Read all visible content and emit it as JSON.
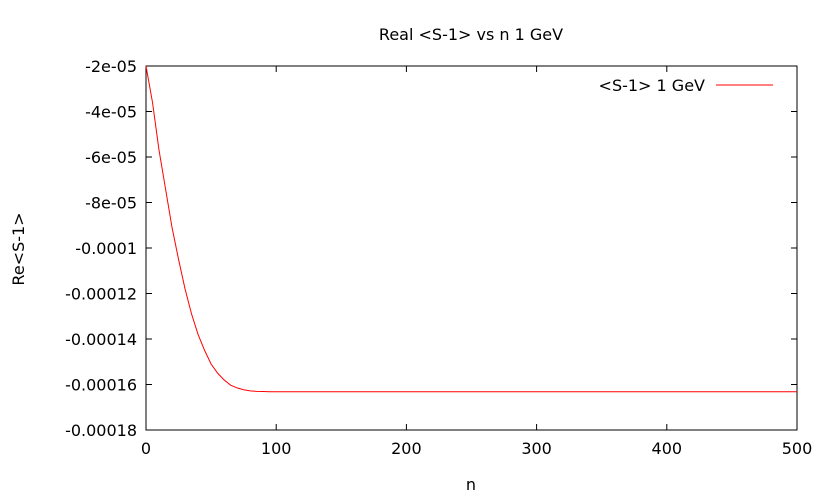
{
  "chart_data": {
    "type": "line",
    "title": "Real <S-1> vs n 1 GeV",
    "xlabel": "n",
    "ylabel": "Re<S-1>",
    "xlim": [
      0,
      500
    ],
    "ylim": [
      -0.00018,
      -2e-05
    ],
    "x_ticks": [
      0,
      100,
      200,
      300,
      400,
      500
    ],
    "x_tick_labels": [
      "0",
      "100",
      "200",
      "300",
      "400",
      "500"
    ],
    "y_ticks": [
      -2e-05,
      -4e-05,
      -6e-05,
      -8e-05,
      -0.0001,
      -0.00012,
      -0.00014,
      -0.00016,
      -0.00018
    ],
    "y_tick_labels": [
      "-2e-05",
      "-4e-05",
      "-6e-05",
      "-8e-05",
      "-0.0001",
      "-0.00012",
      "-0.00014",
      "-0.00016",
      "-0.00018"
    ],
    "grid": false,
    "legend_position": "top-right",
    "series": [
      {
        "name": "<S-1> 1  GeV",
        "color": "#ff0000",
        "x": [
          0,
          5,
          10,
          15,
          20,
          25,
          30,
          35,
          40,
          45,
          50,
          55,
          60,
          65,
          70,
          75,
          80,
          85,
          90,
          95,
          100,
          110,
          120,
          150,
          200,
          250,
          300,
          350,
          400,
          450,
          500
        ],
        "y": [
          -2e-05,
          -3.6e-05,
          -5.7e-05,
          -7.4e-05,
          -9.1e-05,
          -0.000105,
          -0.000118,
          -0.000129,
          -0.000138,
          -0.000145,
          -0.000151,
          -0.000155,
          -0.000158,
          -0.0001603,
          -0.0001615,
          -0.0001623,
          -0.0001628,
          -0.000163,
          -0.0001631,
          -0.0001632,
          -0.0001632,
          -0.0001632,
          -0.0001632,
          -0.0001632,
          -0.0001632,
          -0.0001632,
          -0.0001632,
          -0.0001632,
          -0.0001632,
          -0.0001632,
          -0.0001632
        ]
      }
    ]
  }
}
